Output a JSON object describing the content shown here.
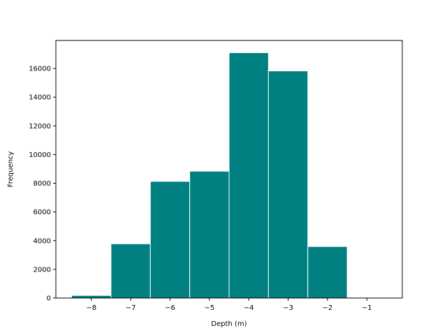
{
  "chart_data": {
    "type": "bar",
    "title": "",
    "xlabel": "Depth (m)",
    "ylabel": "Frequency",
    "bins": [
      {
        "x0": -8.5,
        "x1": -7.5,
        "count": 180
      },
      {
        "x0": -7.5,
        "x1": -6.5,
        "count": 3780
      },
      {
        "x0": -6.5,
        "x1": -5.5,
        "count": 8130
      },
      {
        "x0": -5.5,
        "x1": -4.5,
        "count": 8840
      },
      {
        "x0": -4.5,
        "x1": -3.5,
        "count": 17100
      },
      {
        "x0": -3.5,
        "x1": -2.5,
        "count": 15830
      },
      {
        "x0": -2.5,
        "x1": -1.5,
        "count": 3590
      }
    ],
    "xlim": [
      -8.9,
      -0.1
    ],
    "ylim": [
      0,
      17950
    ],
    "xticks": [
      -8,
      -7,
      -6,
      -5,
      -4,
      -3,
      -2,
      -1
    ],
    "xtick_labels": [
      "−8",
      "−7",
      "−6",
      "−5",
      "−4",
      "−3",
      "−2",
      "−1"
    ],
    "yticks": [
      0,
      2000,
      4000,
      6000,
      8000,
      10000,
      12000,
      14000,
      16000
    ],
    "ytick_labels": [
      "0",
      "2000",
      "4000",
      "6000",
      "8000",
      "10000",
      "12000",
      "14000",
      "16000"
    ],
    "bar_color": "#008080",
    "edge_color": "#ffffff",
    "grid": false,
    "legend": "none"
  }
}
